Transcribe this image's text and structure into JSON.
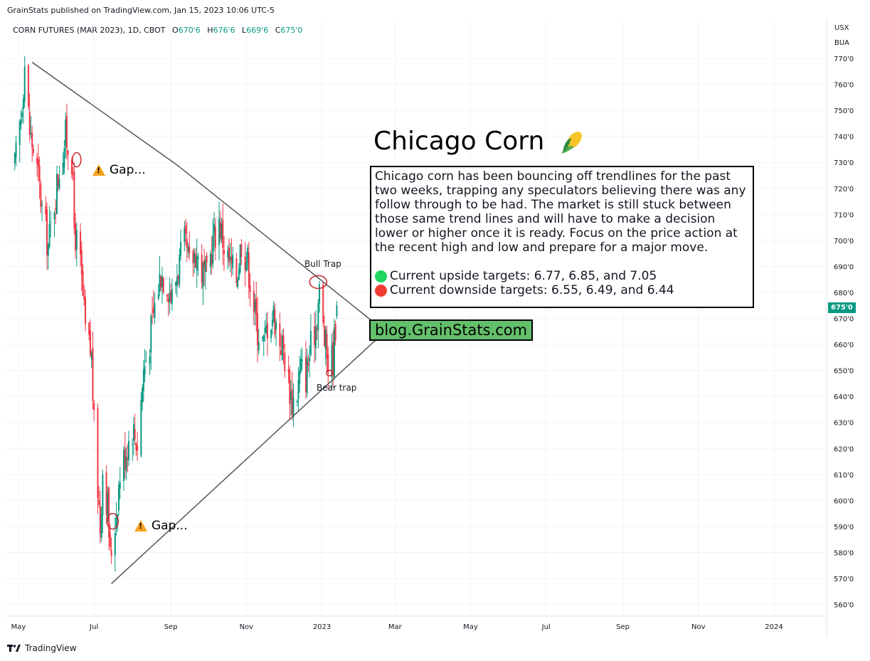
{
  "header": {
    "published": "GrainStats published on TradingView.com, Jan 15, 2023 10:06 UTC-5",
    "symbol": "CORN FUTURES (MAR 2023), 1D, CBOT",
    "ohlc": [
      {
        "label": "O",
        "value": "670'6"
      },
      {
        "label": "H",
        "value": "676'6"
      },
      {
        "label": "L",
        "value": "669'6"
      },
      {
        "label": "C",
        "value": "675'0"
      }
    ],
    "currency": "USX",
    "unit": "BUA"
  },
  "price_tag": "675'0",
  "colors": {
    "up": "#089981",
    "down": "#f23645",
    "accent": "#63c06a",
    "trendline": "#555555",
    "circle": "#c0262d"
  },
  "overlay": {
    "title": "Chicago Corn",
    "title_icon": "corn-icon",
    "paragraph": "Chicago corn has been bouncing off trendlines for the past two weeks, trapping any speculators believing there was any follow through to be had. The market is still stuck between those same trend lines and will have to make a decision lower or higher once it is ready. Focus on the price action at the recent high and low and prepare for a major move.",
    "upside": "Current upside targets:  6.77, 6.85, and 7.05",
    "downside": "Current downside targets: 6.55, 6.49, and 6.44",
    "blog": "blog.GrainStats.com",
    "bull_trap": "Bull Trap",
    "bear_trap": "Bear trap",
    "gap_top": "Gap...",
    "gap_bottom": "Gap..."
  },
  "footer": {
    "brand": "TradingView"
  },
  "chart_data": {
    "type": "candlestick",
    "y_ticks": [
      "770'0",
      "760'0",
      "750'0",
      "740'0",
      "730'0",
      "720'0",
      "710'0",
      "700'0",
      "690'0",
      "680'0",
      "670'0",
      "660'0",
      "650'0",
      "640'0",
      "630'0",
      "620'0",
      "610'0",
      "600'0",
      "590'0",
      "580'0",
      "570'0",
      "560'0"
    ],
    "x_ticks": [
      "May",
      "Jul",
      "Sep",
      "Nov",
      "2023",
      "Mar",
      "May",
      "Jul",
      "Sep",
      "Nov",
      "2024"
    ],
    "ylim": [
      556,
      778
    ],
    "grid": true,
    "close_path": [
      {
        "date": "2022-04-28",
        "close": 728
      },
      {
        "date": "2022-05-03",
        "close": 748
      },
      {
        "date": "2022-05-06",
        "close": 768
      },
      {
        "date": "2022-05-10",
        "close": 742
      },
      {
        "date": "2022-05-13",
        "close": 735
      },
      {
        "date": "2022-05-17",
        "close": 724
      },
      {
        "date": "2022-05-20",
        "close": 712
      },
      {
        "date": "2022-05-25",
        "close": 698
      },
      {
        "date": "2022-05-30",
        "close": 715
      },
      {
        "date": "2022-06-03",
        "close": 728
      },
      {
        "date": "2022-06-08",
        "close": 740
      },
      {
        "date": "2022-06-13",
        "close": 732
      },
      {
        "date": "2022-06-15",
        "close": 705
      },
      {
        "date": "2022-06-20",
        "close": 690
      },
      {
        "date": "2022-06-24",
        "close": 665
      },
      {
        "date": "2022-06-29",
        "close": 655
      },
      {
        "date": "2022-07-01",
        "close": 628
      },
      {
        "date": "2022-07-06",
        "close": 590
      },
      {
        "date": "2022-07-08",
        "close": 612
      },
      {
        "date": "2022-07-12",
        "close": 598
      },
      {
        "date": "2022-07-14",
        "close": 578
      },
      {
        "date": "2022-07-18",
        "close": 592
      },
      {
        "date": "2022-07-22",
        "close": 610
      },
      {
        "date": "2022-07-27",
        "close": 620
      },
      {
        "date": "2022-08-01",
        "close": 628
      },
      {
        "date": "2022-08-05",
        "close": 622
      },
      {
        "date": "2022-08-10",
        "close": 650
      },
      {
        "date": "2022-08-15",
        "close": 662
      },
      {
        "date": "2022-08-19",
        "close": 675
      },
      {
        "date": "2022-08-24",
        "close": 688
      },
      {
        "date": "2022-08-29",
        "close": 684
      },
      {
        "date": "2022-09-02",
        "close": 678
      },
      {
        "date": "2022-09-07",
        "close": 690
      },
      {
        "date": "2022-09-12",
        "close": 698
      },
      {
        "date": "2022-09-16",
        "close": 690
      },
      {
        "date": "2022-09-21",
        "close": 696
      },
      {
        "date": "2022-09-26",
        "close": 688
      },
      {
        "date": "2022-09-30",
        "close": 685
      },
      {
        "date": "2022-10-05",
        "close": 700
      },
      {
        "date": "2022-10-10",
        "close": 708
      },
      {
        "date": "2022-10-14",
        "close": 698
      },
      {
        "date": "2022-10-19",
        "close": 690
      },
      {
        "date": "2022-10-24",
        "close": 686
      },
      {
        "date": "2022-10-28",
        "close": 700
      },
      {
        "date": "2022-11-02",
        "close": 692
      },
      {
        "date": "2022-11-07",
        "close": 675
      },
      {
        "date": "2022-11-10",
        "close": 666
      },
      {
        "date": "2022-11-15",
        "close": 660
      },
      {
        "date": "2022-11-18",
        "close": 668
      },
      {
        "date": "2022-11-23",
        "close": 672
      },
      {
        "date": "2022-11-28",
        "close": 662
      },
      {
        "date": "2022-12-01",
        "close": 658
      },
      {
        "date": "2022-12-05",
        "close": 646
      },
      {
        "date": "2022-12-08",
        "close": 638
      },
      {
        "date": "2022-12-12",
        "close": 642
      },
      {
        "date": "2022-12-15",
        "close": 651
      },
      {
        "date": "2022-12-19",
        "close": 648
      },
      {
        "date": "2022-12-22",
        "close": 656
      },
      {
        "date": "2022-12-27",
        "close": 668
      },
      {
        "date": "2022-12-30",
        "close": 680
      },
      {
        "date": "2023-01-03",
        "close": 662
      },
      {
        "date": "2023-01-06",
        "close": 653
      },
      {
        "date": "2023-01-10",
        "close": 655
      },
      {
        "date": "2023-01-12",
        "close": 668
      },
      {
        "date": "2023-01-13",
        "close": 675
      }
    ],
    "last": {
      "open": "670'6",
      "high": "676'6",
      "low": "669'6",
      "close": "675'0"
    }
  }
}
